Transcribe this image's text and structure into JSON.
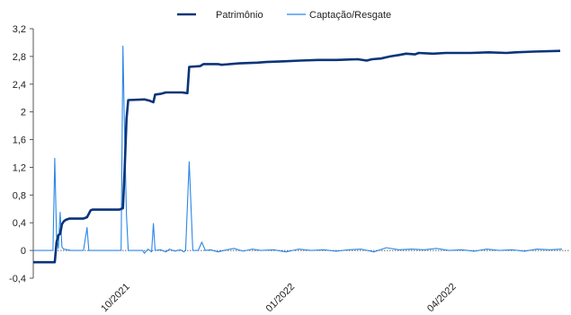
{
  "chart_data": {
    "type": "line",
    "title": "",
    "xlabel": "",
    "ylabel": "",
    "ylim": [
      -0.4,
      3.2
    ],
    "yticks": [
      "3,2",
      "2,8",
      "2,4",
      "2",
      "1,6",
      "1,2",
      "0,8",
      "0,4",
      "0",
      "-0,4"
    ],
    "xlim": [
      "2021-08-15",
      "2022-06-10"
    ],
    "xticks": [
      {
        "label": "10/2021",
        "date": "2021-10-01"
      },
      {
        "label": "01/2022",
        "date": "2022-01-01"
      },
      {
        "label": "04/2022",
        "date": "2022-04-01"
      }
    ],
    "grid": false,
    "legend_position": "top-center",
    "series": [
      {
        "name": "Patrimônio",
        "color": "#0a3479",
        "style": "thick",
        "points": [
          [
            "2021-08-15",
            -0.17
          ],
          [
            "2021-08-27",
            -0.17
          ],
          [
            "2021-08-28",
            0.12
          ],
          [
            "2021-08-29",
            0.22
          ],
          [
            "2021-08-30",
            0.24
          ],
          [
            "2021-08-31",
            0.38
          ],
          [
            "2021-09-01",
            0.42
          ],
          [
            "2021-09-02",
            0.44
          ],
          [
            "2021-09-04",
            0.46
          ],
          [
            "2021-09-12",
            0.46
          ],
          [
            "2021-09-14",
            0.48
          ],
          [
            "2021-09-16",
            0.58
          ],
          [
            "2021-09-17",
            0.59
          ],
          [
            "2021-10-02",
            0.59
          ],
          [
            "2021-10-04",
            0.61
          ],
          [
            "2021-10-05",
            1.2
          ],
          [
            "2021-10-06",
            1.9
          ],
          [
            "2021-10-07",
            2.17
          ],
          [
            "2021-10-16",
            2.18
          ],
          [
            "2021-10-19",
            2.16
          ],
          [
            "2021-10-21",
            2.14
          ],
          [
            "2021-10-22",
            2.25
          ],
          [
            "2021-10-25",
            2.26
          ],
          [
            "2021-10-28",
            2.28
          ],
          [
            "2021-11-02",
            2.28
          ],
          [
            "2021-11-06",
            2.28
          ],
          [
            "2021-11-09",
            2.27
          ],
          [
            "2021-11-10",
            2.65
          ],
          [
            "2021-11-16",
            2.66
          ],
          [
            "2021-11-18",
            2.69
          ],
          [
            "2021-11-26",
            2.69
          ],
          [
            "2021-11-28",
            2.68
          ],
          [
            "2021-12-08",
            2.7
          ],
          [
            "2021-12-18",
            2.71
          ],
          [
            "2021-12-23",
            2.72
          ],
          [
            "2022-01-02",
            2.73
          ],
          [
            "2022-01-11",
            2.74
          ],
          [
            "2022-01-21",
            2.75
          ],
          [
            "2022-01-31",
            2.75
          ],
          [
            "2022-02-12",
            2.76
          ],
          [
            "2022-02-17",
            2.74
          ],
          [
            "2022-02-20",
            2.76
          ],
          [
            "2022-02-25",
            2.77
          ],
          [
            "2022-03-02",
            2.8
          ],
          [
            "2022-03-07",
            2.82
          ],
          [
            "2022-03-11",
            2.84
          ],
          [
            "2022-03-16",
            2.83
          ],
          [
            "2022-03-18",
            2.85
          ],
          [
            "2022-03-26",
            2.84
          ],
          [
            "2022-04-02",
            2.85
          ],
          [
            "2022-04-16",
            2.85
          ],
          [
            "2022-04-26",
            2.86
          ],
          [
            "2022-05-06",
            2.85
          ],
          [
            "2022-05-11",
            2.86
          ],
          [
            "2022-05-21",
            2.87
          ],
          [
            "2022-06-05",
            2.88
          ]
        ]
      },
      {
        "name": "Captação/Resgate",
        "color": "#2b86e6",
        "style": "thin",
        "points": [
          [
            "2021-08-15",
            0.0
          ],
          [
            "2021-08-26",
            0.0
          ],
          [
            "2021-08-27",
            1.33
          ],
          [
            "2021-08-28",
            0.2
          ],
          [
            "2021-08-29",
            0.03
          ],
          [
            "2021-08-30",
            0.55
          ],
          [
            "2021-08-31",
            0.05
          ],
          [
            "2021-09-01",
            0.02
          ],
          [
            "2021-09-05",
            0.0
          ],
          [
            "2021-09-12",
            0.0
          ],
          [
            "2021-09-14",
            0.33
          ],
          [
            "2021-09-15",
            0.0
          ],
          [
            "2021-10-01",
            0.0
          ],
          [
            "2021-10-03",
            0.0
          ],
          [
            "2021-10-04",
            2.95
          ],
          [
            "2021-10-05",
            1.6
          ],
          [
            "2021-10-06",
            0.5
          ],
          [
            "2021-10-07",
            0.0
          ],
          [
            "2021-10-12",
            0.0
          ],
          [
            "2021-10-15",
            0.0
          ],
          [
            "2021-10-16",
            -0.04
          ],
          [
            "2021-10-18",
            0.02
          ],
          [
            "2021-10-20",
            -0.02
          ],
          [
            "2021-10-21",
            0.39
          ],
          [
            "2021-10-22",
            0.0
          ],
          [
            "2021-10-25",
            0.01
          ],
          [
            "2021-10-28",
            -0.02
          ],
          [
            "2021-10-30",
            0.02
          ],
          [
            "2021-11-02",
            -0.01
          ],
          [
            "2021-11-05",
            0.01
          ],
          [
            "2021-11-07",
            -0.02
          ],
          [
            "2021-11-08",
            0.0
          ],
          [
            "2021-11-10",
            1.28
          ],
          [
            "2021-11-12",
            0.0
          ],
          [
            "2021-11-15",
            0.0
          ],
          [
            "2021-11-17",
            0.12
          ],
          [
            "2021-11-19",
            0.0
          ],
          [
            "2021-11-22",
            0.01
          ],
          [
            "2021-11-26",
            -0.02
          ],
          [
            "2021-12-01",
            0.01
          ],
          [
            "2021-12-05",
            0.03
          ],
          [
            "2021-12-10",
            -0.01
          ],
          [
            "2021-12-15",
            0.02
          ],
          [
            "2021-12-20",
            0.0
          ],
          [
            "2021-12-27",
            0.01
          ],
          [
            "2022-01-03",
            -0.02
          ],
          [
            "2022-01-10",
            0.02
          ],
          [
            "2022-01-17",
            0.0
          ],
          [
            "2022-01-24",
            0.01
          ],
          [
            "2022-01-31",
            -0.01
          ],
          [
            "2022-02-07",
            0.01
          ],
          [
            "2022-02-14",
            0.02
          ],
          [
            "2022-02-21",
            -0.02
          ],
          [
            "2022-02-28",
            0.04
          ],
          [
            "2022-03-07",
            0.01
          ],
          [
            "2022-03-14",
            0.02
          ],
          [
            "2022-03-21",
            0.01
          ],
          [
            "2022-03-28",
            0.03
          ],
          [
            "2022-04-04",
            0.0
          ],
          [
            "2022-04-11",
            0.01
          ],
          [
            "2022-04-18",
            -0.01
          ],
          [
            "2022-04-25",
            0.02
          ],
          [
            "2022-05-02",
            0.0
          ],
          [
            "2022-05-09",
            0.01
          ],
          [
            "2022-05-16",
            -0.01
          ],
          [
            "2022-05-23",
            0.02
          ],
          [
            "2022-05-30",
            0.01
          ],
          [
            "2022-06-06",
            0.02
          ]
        ]
      }
    ]
  }
}
